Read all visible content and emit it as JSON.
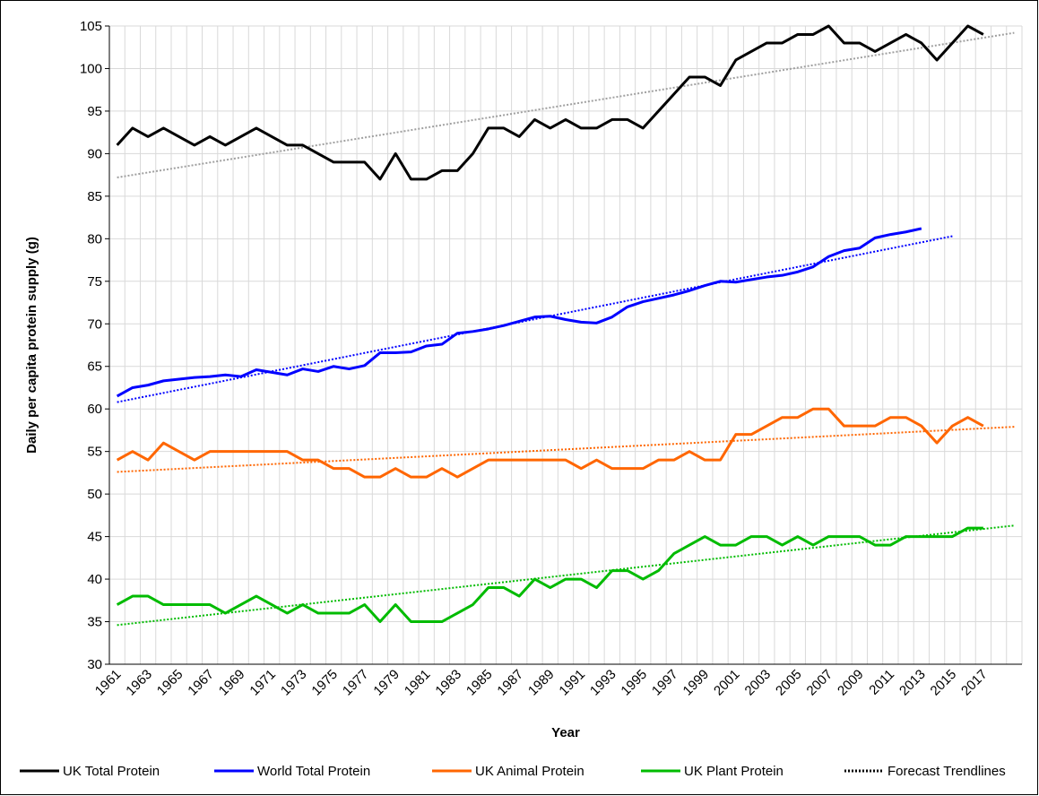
{
  "chart_data": {
    "type": "line",
    "x_label": "Year",
    "y_label": "Daily per capita protein supply (g)",
    "categories": [
      "1961",
      null,
      "1963",
      null,
      "1965",
      null,
      "1967",
      null,
      "1969",
      null,
      "1971",
      null,
      "1973",
      null,
      "1975",
      null,
      "1977",
      null,
      "1979",
      null,
      "1981",
      null,
      "1983",
      null,
      "1985",
      null,
      "1987",
      null,
      "1989",
      null,
      "1991",
      null,
      "1993",
      null,
      "1995",
      null,
      "1997",
      null,
      "1999",
      null,
      "2001",
      null,
      "2003",
      null,
      "2005",
      null,
      "2007",
      null,
      "2009",
      null,
      "2011",
      null,
      "2013",
      null,
      "2015",
      null,
      "2017",
      null,
      null
    ],
    "series": [
      {
        "name": "UK Total Protein",
        "color": "#000000",
        "values": [
          91,
          93,
          92,
          93,
          92,
          91,
          92,
          91,
          92,
          93,
          92,
          91,
          91,
          90,
          89,
          89,
          89,
          87,
          90,
          87,
          87,
          88,
          88,
          90,
          93,
          93,
          92,
          94,
          93,
          94,
          93,
          93,
          94,
          94,
          93,
          95,
          97,
          99,
          99,
          98,
          101,
          102,
          103,
          103,
          104,
          104,
          105,
          103,
          103,
          102,
          103,
          104,
          103,
          101,
          103,
          105,
          104,
          null,
          null
        ]
      },
      {
        "name": "World Total Protein",
        "color": "#0000ff",
        "values": [
          61.5,
          62.5,
          62.8,
          63.3,
          63.5,
          63.7,
          63.8,
          64.0,
          63.8,
          64.6,
          64.3,
          64.0,
          64.7,
          64.4,
          65.0,
          64.7,
          65.1,
          66.6,
          66.6,
          66.7,
          67.4,
          67.6,
          68.9,
          69.1,
          69.4,
          69.8,
          70.3,
          70.8,
          70.9,
          70.5,
          70.2,
          70.1,
          70.8,
          72.0,
          72.6,
          73.0,
          73.4,
          73.9,
          74.5,
          75.0,
          74.9,
          75.2,
          75.5,
          75.7,
          76.1,
          76.7,
          77.9,
          78.6,
          78.9,
          80.1,
          80.5,
          80.8,
          81.2,
          null,
          null,
          null,
          null,
          null,
          null
        ]
      },
      {
        "name": "UK Animal Protein",
        "color": "#ff6600",
        "values": [
          54,
          55,
          54,
          56,
          55,
          54,
          55,
          55,
          55,
          55,
          55,
          55,
          54,
          54,
          53,
          53,
          52,
          52,
          53,
          52,
          52,
          53,
          52,
          53,
          54,
          54,
          54,
          54,
          54,
          54,
          53,
          54,
          53,
          53,
          53,
          54,
          54,
          55,
          54,
          54,
          57,
          57,
          58,
          59,
          59,
          60,
          60,
          58,
          58,
          58,
          59,
          59,
          58,
          56,
          58,
          59,
          58,
          null,
          null
        ]
      },
      {
        "name": "UK Plant Protein",
        "color": "#00bb00",
        "values": [
          37,
          38,
          38,
          37,
          37,
          37,
          37,
          36,
          37,
          38,
          37,
          36,
          37,
          36,
          36,
          36,
          37,
          35,
          37,
          35,
          35,
          35,
          36,
          37,
          39,
          39,
          38,
          40,
          39,
          40,
          40,
          39,
          41,
          41,
          40,
          41,
          43,
          44,
          45,
          44,
          44,
          45,
          45,
          44,
          45,
          44,
          45,
          45,
          45,
          44,
          44,
          45,
          45,
          45,
          45,
          46,
          46,
          null,
          null
        ]
      }
    ],
    "trendlines": {
      "name": "Forecast Trendlines",
      "color": "#000000",
      "lines": [
        {
          "color": "#a0a0a0",
          "x": [
            1961,
            2019
          ],
          "values": [
            87.2,
            104.2
          ]
        },
        {
          "color": "#0000ff",
          "x": [
            1961,
            2015
          ],
          "values": [
            60.8,
            80.3
          ]
        },
        {
          "color": "#ff6600",
          "x": [
            1961,
            2019
          ],
          "values": [
            52.6,
            57.9
          ]
        },
        {
          "color": "#00bb00",
          "x": [
            1961,
            2019
          ],
          "values": [
            34.6,
            46.3
          ]
        }
      ]
    },
    "ylim": [
      30,
      105
    ],
    "yticks": [
      30,
      35,
      40,
      45,
      50,
      55,
      60,
      65,
      70,
      75,
      80,
      85,
      90,
      95,
      100,
      105
    ],
    "grid": true,
    "legend": "bottom"
  }
}
